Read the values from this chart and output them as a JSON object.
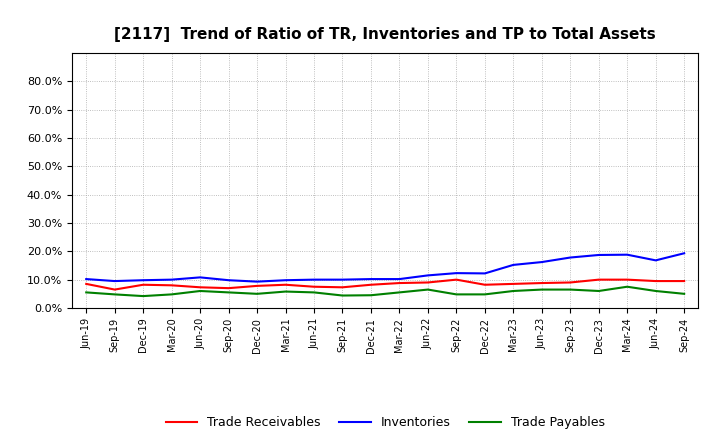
{
  "title": "[2117]  Trend of Ratio of TR, Inventories and TP to Total Assets",
  "x_labels": [
    "Jun-19",
    "Sep-19",
    "Dec-19",
    "Mar-20",
    "Jun-20",
    "Sep-20",
    "Dec-20",
    "Mar-21",
    "Jun-21",
    "Sep-21",
    "Dec-21",
    "Mar-22",
    "Jun-22",
    "Sep-22",
    "Dec-22",
    "Mar-23",
    "Jun-23",
    "Sep-23",
    "Dec-23",
    "Mar-24",
    "Jun-24",
    "Sep-24"
  ],
  "trade_receivables": [
    0.085,
    0.065,
    0.082,
    0.08,
    0.073,
    0.07,
    0.078,
    0.082,
    0.075,
    0.073,
    0.082,
    0.088,
    0.09,
    0.1,
    0.082,
    0.085,
    0.088,
    0.09,
    0.1,
    0.1,
    0.095,
    0.095
  ],
  "inventories": [
    0.102,
    0.095,
    0.098,
    0.1,
    0.108,
    0.098,
    0.093,
    0.098,
    0.1,
    0.1,
    0.102,
    0.102,
    0.115,
    0.123,
    0.122,
    0.152,
    0.162,
    0.178,
    0.187,
    0.188,
    0.168,
    0.193
  ],
  "trade_payables": [
    0.055,
    0.048,
    0.042,
    0.048,
    0.06,
    0.055,
    0.05,
    0.058,
    0.055,
    0.044,
    0.045,
    0.055,
    0.065,
    0.048,
    0.048,
    0.06,
    0.065,
    0.065,
    0.06,
    0.075,
    0.06,
    0.05
  ],
  "ylim": [
    0.0,
    0.9
  ],
  "yticks": [
    0.0,
    0.1,
    0.2,
    0.3,
    0.4,
    0.5,
    0.6,
    0.7,
    0.8
  ],
  "ytick_labels": [
    "0.0%",
    "10.0%",
    "20.0%",
    "30.0%",
    "40.0%",
    "50.0%",
    "60.0%",
    "70.0%",
    "80.0%"
  ],
  "color_tr": "#FF0000",
  "color_inv": "#0000FF",
  "color_tp": "#008000",
  "legend_tr": "Trade Receivables",
  "legend_inv": "Inventories",
  "legend_tp": "Trade Payables",
  "bg_color": "#FFFFFF",
  "plot_bg_color": "#FFFFFF",
  "grid_color": "#AAAAAA",
  "line_width": 1.5,
  "title_fontsize": 11
}
